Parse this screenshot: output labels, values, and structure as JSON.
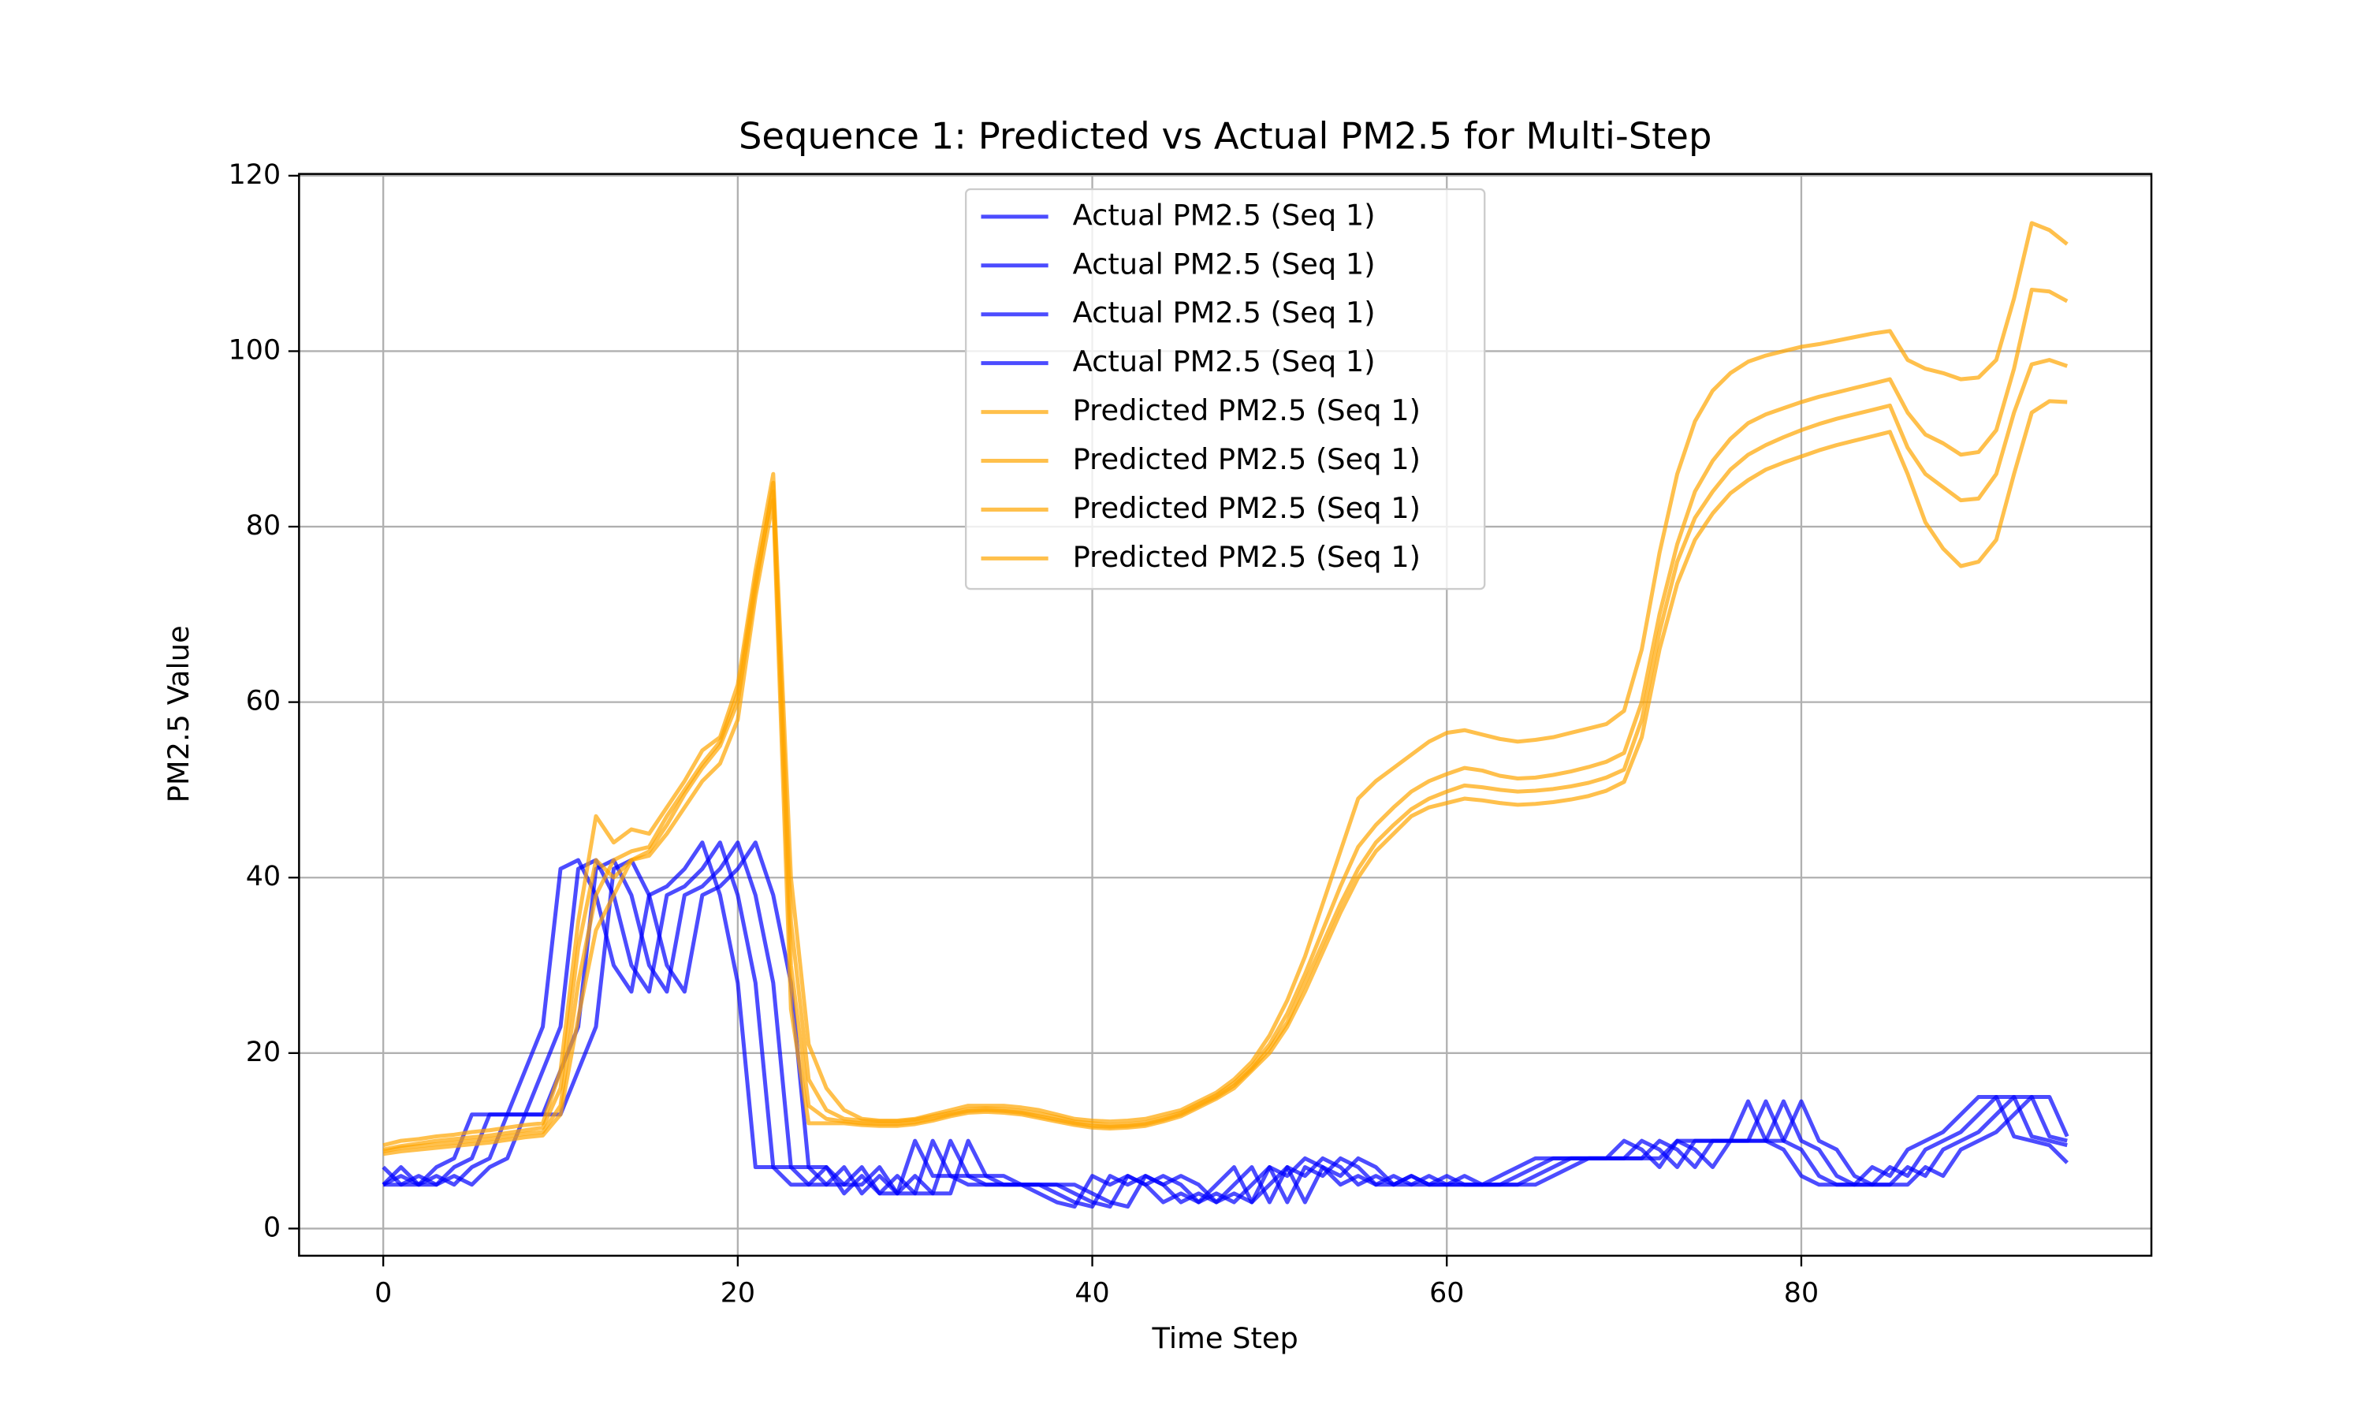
{
  "chart_data": {
    "type": "line",
    "title": "Sequence 1: Predicted vs Actual PM2.5 for Multi-Step",
    "x_label": "Time Step",
    "y_label": "PM2.5 Value",
    "x": [
      0,
      1,
      2,
      3,
      4,
      5,
      6,
      7,
      8,
      9,
      10,
      11,
      12,
      13,
      14,
      15,
      16,
      17,
      18,
      19,
      20,
      21,
      22,
      23,
      24,
      25,
      26,
      27,
      28,
      29,
      30,
      31,
      32,
      33,
      34,
      35,
      36,
      37,
      38,
      39,
      40,
      41,
      42,
      43,
      44,
      45,
      46,
      47,
      48,
      49,
      50,
      51,
      52,
      53,
      54,
      55,
      56,
      57,
      58,
      59,
      60,
      61,
      62,
      63,
      64,
      65,
      66,
      67,
      68,
      69,
      70,
      71,
      72,
      73,
      74,
      75,
      76,
      77,
      78,
      79,
      80,
      81,
      82,
      83,
      84,
      85,
      86,
      87,
      88,
      89,
      90,
      91,
      92,
      93,
      94,
      95
    ],
    "series": [
      {
        "name": "Actual PM2.5 (Seq 1)",
        "color": "#0000ff",
        "values": [
          5,
          7,
          5,
          5,
          6,
          5,
          7,
          8,
          13,
          13,
          13,
          18,
          23,
          41,
          42,
          38,
          30,
          27,
          38,
          39,
          41,
          44,
          38,
          28,
          7,
          7,
          5,
          5,
          7,
          4,
          6,
          4,
          4,
          10,
          6,
          6,
          5,
          5,
          5,
          5,
          4,
          3,
          2.5,
          6,
          5,
          6,
          5,
          3,
          4,
          3,
          5,
          7,
          3,
          7,
          6,
          8,
          7,
          5,
          6,
          5,
          5,
          6,
          5,
          5,
          5,
          5,
          6,
          7,
          8,
          8,
          8,
          8,
          8,
          10,
          9,
          7,
          10,
          10,
          10,
          10,
          14.5,
          10,
          9,
          6,
          5,
          5,
          5,
          7,
          6,
          9,
          10,
          11,
          13,
          15,
          15,
          10.5
        ]
      },
      {
        "name": "Actual PM2.5 (Seq 1)",
        "color": "#0000ff",
        "values": [
          7,
          5,
          5,
          6,
          5,
          7,
          8,
          13,
          13,
          13,
          18,
          23,
          41,
          42,
          38,
          30,
          27,
          38,
          39,
          41,
          44,
          38,
          28,
          7,
          7,
          5,
          5,
          7,
          4,
          6,
          4,
          4,
          10,
          6,
          6,
          5,
          5,
          5,
          5,
          4,
          3,
          2.5,
          6,
          5,
          6,
          5,
          3,
          4,
          3,
          5,
          7,
          3,
          7,
          6,
          8,
          7,
          5,
          6,
          5,
          5,
          6,
          5,
          5,
          5,
          5,
          6,
          7,
          8,
          8,
          8,
          8,
          8,
          10,
          9,
          7,
          10,
          10,
          10,
          10,
          14.5,
          10,
          9,
          6,
          5,
          5,
          5,
          7,
          6,
          9,
          10,
          11,
          13,
          15,
          15,
          10.5,
          10
        ]
      },
      {
        "name": "Actual PM2.5 (Seq 1)",
        "color": "#0000ff",
        "values": [
          5,
          5,
          6,
          5,
          7,
          8,
          13,
          13,
          13,
          18,
          23,
          41,
          42,
          38,
          30,
          27,
          38,
          39,
          41,
          44,
          38,
          28,
          7,
          7,
          5,
          5,
          7,
          4,
          6,
          4,
          4,
          10,
          6,
          6,
          5,
          5,
          5,
          5,
          4,
          3,
          2.5,
          6,
          5,
          6,
          5,
          3,
          4,
          3,
          5,
          7,
          3,
          7,
          6,
          8,
          7,
          5,
          6,
          5,
          5,
          6,
          5,
          5,
          5,
          5,
          6,
          7,
          8,
          8,
          8,
          8,
          8,
          10,
          9,
          7,
          10,
          10,
          10,
          10,
          14.5,
          10,
          9,
          6,
          5,
          5,
          5,
          7,
          6,
          9,
          10,
          11,
          13,
          15,
          15,
          10.5,
          10,
          9.5
        ]
      },
      {
        "name": "Actual PM2.5 (Seq 1)",
        "color": "#0000ff",
        "values": [
          5,
          6,
          5,
          7,
          8,
          13,
          13,
          13,
          18,
          23,
          41,
          42,
          38,
          30,
          27,
          38,
          39,
          41,
          44,
          38,
          28,
          7,
          7,
          5,
          5,
          7,
          4,
          6,
          4,
          4,
          10,
          6,
          6,
          5,
          5,
          5,
          5,
          4,
          3,
          2.5,
          6,
          5,
          6,
          5,
          3,
          4,
          3,
          5,
          7,
          3,
          7,
          6,
          8,
          7,
          5,
          6,
          5,
          5,
          6,
          5,
          5,
          5,
          5,
          6,
          7,
          8,
          8,
          8,
          8,
          8,
          10,
          9,
          7,
          10,
          10,
          10,
          10,
          14.5,
          10,
          9,
          6,
          5,
          5,
          5,
          7,
          6,
          9,
          10,
          11,
          13,
          15,
          15,
          10.5,
          10,
          9.5,
          7.5
        ]
      },
      {
        "name": "Predicted PM2.5 (Seq 1)",
        "color": "#ffa500",
        "values": [
          9.5,
          10,
          10.2,
          10.5,
          10.7,
          11,
          11.2,
          11.5,
          11.8,
          12,
          18,
          35,
          47,
          44,
          45.5,
          45,
          48,
          51,
          54.5,
          56,
          62,
          75,
          86,
          40,
          21,
          16,
          13.5,
          12.5,
          12.3,
          12.3,
          12.5,
          13,
          13.5,
          14,
          14,
          14,
          13.8,
          13.5,
          13,
          12.5,
          12.3,
          12.2,
          12.3,
          12.5,
          13,
          13.5,
          14.5,
          15.5,
          17,
          19,
          22,
          26,
          31,
          37,
          43,
          49,
          51,
          52.5,
          54,
          55.5,
          56.5,
          56.8,
          56.3,
          55.8,
          55.5,
          55.7,
          56,
          56.5,
          57,
          57.5,
          59,
          66,
          77,
          86,
          92,
          95.5,
          97.5,
          98.8,
          99.5,
          100,
          100.5,
          100.8,
          101.2,
          101.6,
          102,
          102.3,
          99,
          98,
          97.5,
          96.8,
          97,
          99,
          106,
          114.6,
          113.8,
          112.2
        ]
      },
      {
        "name": "Predicted PM2.5 (Seq 1)",
        "color": "#ffa500",
        "values": [
          9,
          9.4,
          9.7,
          10,
          10.2,
          10.4,
          10.6,
          10.9,
          11.2,
          11.5,
          16,
          32,
          42,
          40,
          42,
          43,
          46,
          49.5,
          52.5,
          55,
          60,
          73,
          85,
          35,
          17,
          13.5,
          12.5,
          12.3,
          12.2,
          12.2,
          12.4,
          12.8,
          13.2,
          13.6,
          13.7,
          13.6,
          13.4,
          13.1,
          12.7,
          12.2,
          12,
          11.8,
          11.9,
          12.1,
          12.6,
          13.2,
          14.2,
          15.2,
          16.6,
          18.5,
          21,
          24.5,
          29,
          34,
          39,
          43.5,
          46,
          48,
          49.8,
          51,
          51.8,
          52.5,
          52.2,
          51.6,
          51.3,
          51.4,
          51.7,
          52.1,
          52.6,
          53.2,
          54.2,
          60,
          70,
          78,
          84,
          87.5,
          90,
          91.8,
          92.8,
          93.5,
          94.2,
          94.8,
          95.3,
          95.8,
          96.3,
          96.8,
          93,
          90.5,
          89.5,
          88.2,
          88.5,
          91,
          98,
          107,
          106.8,
          105.7
        ]
      },
      {
        "name": "Predicted PM2.5 (Seq 1)",
        "color": "#ffa500",
        "values": [
          8.8,
          9.2,
          9.4,
          9.6,
          9.8,
          10,
          10.2,
          10.5,
          10.8,
          11,
          14,
          28,
          38,
          42,
          43,
          43.5,
          47,
          50,
          53,
          55.5,
          61,
          74,
          84,
          30,
          14,
          12.5,
          12.2,
          12,
          11.9,
          11.9,
          12.1,
          12.5,
          13,
          13.4,
          13.5,
          13.4,
          13.2,
          12.8,
          12.4,
          12,
          11.7,
          11.6,
          11.7,
          11.9,
          12.4,
          13,
          14,
          15,
          16.3,
          18.2,
          20.5,
          23.5,
          28,
          32.5,
          37,
          41,
          44,
          46,
          47.8,
          49,
          49.8,
          50.5,
          50.3,
          50,
          49.8,
          49.9,
          50.1,
          50.4,
          50.8,
          51.4,
          52.3,
          58,
          68,
          76,
          81,
          84,
          86.5,
          88.2,
          89.3,
          90.2,
          91,
          91.7,
          92.3,
          92.8,
          93.3,
          93.8,
          89,
          86,
          84.5,
          83,
          83.2,
          86,
          93,
          98.5,
          99,
          98.3
        ]
      },
      {
        "name": "Predicted PM2.5 (Seq 1)",
        "color": "#ffa500",
        "values": [
          8.5,
          8.8,
          9,
          9.2,
          9.4,
          9.6,
          9.8,
          10.1,
          10.4,
          10.6,
          13,
          24,
          34,
          38,
          42,
          42.5,
          45,
          48,
          51,
          53,
          58,
          72,
          83,
          25,
          12,
          12,
          12,
          11.8,
          11.7,
          11.7,
          11.9,
          12.3,
          12.8,
          13.2,
          13.3,
          13.2,
          13,
          12.6,
          12.2,
          11.8,
          11.5,
          11.4,
          11.5,
          11.7,
          12.2,
          12.8,
          13.8,
          14.8,
          16,
          18,
          20,
          23,
          27,
          31.5,
          36,
          40,
          43,
          45,
          47,
          48,
          48.5,
          49,
          48.8,
          48.5,
          48.3,
          48.4,
          48.6,
          48.9,
          49.3,
          49.9,
          50.9,
          56,
          66,
          73.5,
          78.5,
          81.5,
          83.8,
          85.3,
          86.5,
          87.3,
          88,
          88.7,
          89.3,
          89.8,
          90.3,
          90.8,
          86,
          80.5,
          77.5,
          75.5,
          76,
          78.5,
          86,
          93,
          94.3,
          94.2
        ]
      }
    ],
    "alpha": 0.7,
    "xlim": [
      -4.75,
      99.75
    ],
    "xticks": [
      0,
      20,
      40,
      60,
      80
    ],
    "ylim": [
      -3.1,
      120.2
    ],
    "yticks": [
      0,
      20,
      40,
      60,
      80,
      100,
      120
    ],
    "grid": true,
    "legend": "upper center"
  }
}
